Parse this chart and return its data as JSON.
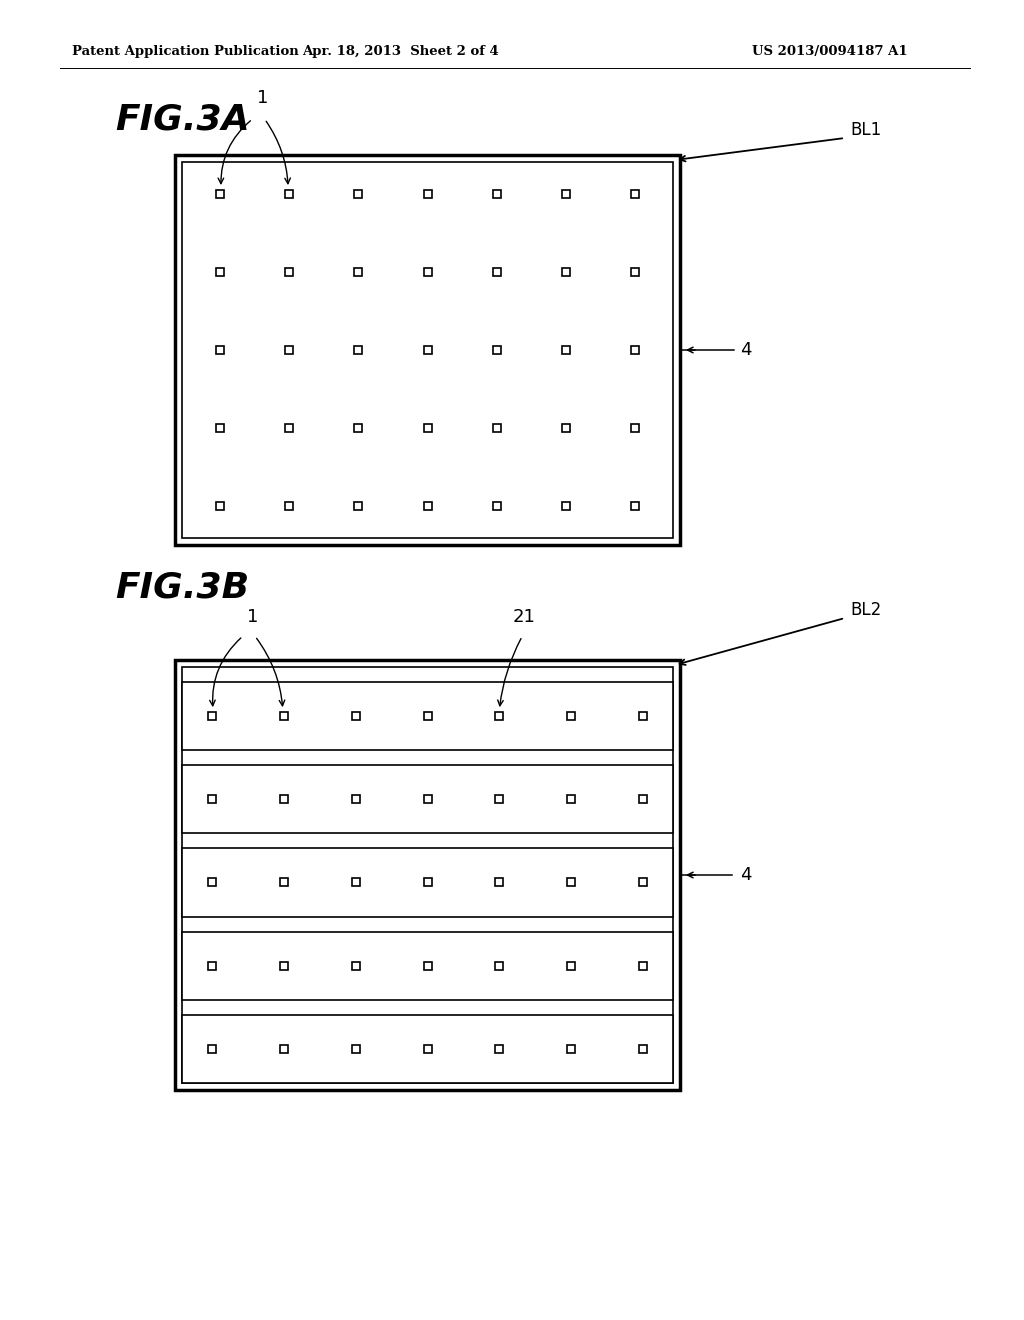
{
  "header_left": "Patent Application Publication",
  "header_mid": "Apr. 18, 2013  Sheet 2 of 4",
  "header_right": "US 2013/0094187 A1",
  "fig3a_label": "FIG.3A",
  "fig3b_label": "FIG.3B",
  "label_bl1": "BL1",
  "label_bl2": "BL2",
  "label_4": "4",
  "label_1": "1",
  "label_21": "21",
  "cols": 7,
  "rows": 5,
  "bg_color": "#ffffff",
  "border_color": "#000000"
}
